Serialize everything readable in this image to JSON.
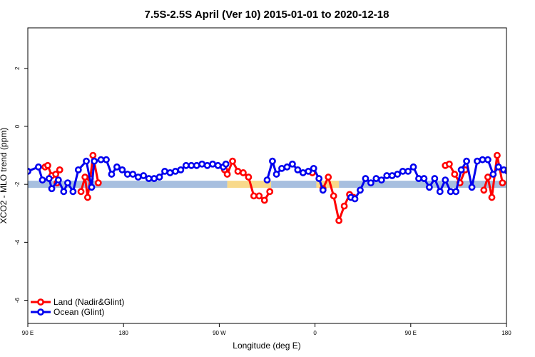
{
  "chart_data": {
    "type": "line",
    "title": "7.5S-2.5S April (Ver 10)   2015-01-01 to 2020-12-18",
    "xlabel": "Longitude (deg E)",
    "ylabel": "XCO2 - MLO trend (ppm)",
    "xlim": [
      90,
      450
    ],
    "ylim": [
      -6.8,
      3.4
    ],
    "x_ticks": [
      {
        "value": 90,
        "label": "90 E"
      },
      {
        "value": 162,
        "label": "180"
      },
      {
        "value": 234,
        "label": "90 W"
      },
      {
        "value": 306,
        "label": "0"
      },
      {
        "value": 378,
        "label": "90 E"
      },
      {
        "value": 450,
        "label": "180"
      }
    ],
    "y_ticks": [
      {
        "value": 2,
        "label": "2"
      },
      {
        "value": 0,
        "label": "0"
      },
      {
        "value": -2,
        "label": "-2"
      },
      {
        "value": -4,
        "label": "-4"
      },
      {
        "value": -6,
        "label": "-6"
      }
    ],
    "grid": false,
    "legend_position": "bottom-left",
    "reference_band": {
      "y": -2.0,
      "segments": [
        {
          "x": [
            90,
            240
          ],
          "color": "#a7bfdf"
        },
        {
          "x": [
            240,
            273
          ],
          "color": "#f8d98a"
        },
        {
          "x": [
            273,
            307
          ],
          "color": "#a7bfdf"
        },
        {
          "x": [
            307,
            324
          ],
          "color": "#f8d98a"
        },
        {
          "x": [
            324,
            450
          ],
          "color": "#a7bfdf"
        }
      ]
    },
    "series": [
      {
        "name": "Land (Nadir&Glint)",
        "color": "#ff0000",
        "segments": [
          [
            [
              103,
              -1.4
            ],
            [
              105,
              -1.35
            ],
            [
              108,
              -1.7
            ],
            [
              111,
              -1.65
            ],
            [
              112,
              -1.95
            ]
          ],
          [
            [
              114,
              -1.5
            ]
          ],
          [
            [
              130,
              -2.25
            ],
            [
              133,
              -1.75
            ],
            [
              135,
              -2.45
            ],
            [
              137,
              -1.8
            ],
            [
              139,
              -1.0
            ],
            [
              143,
              -1.95
            ]
          ],
          [
            [
              238,
              -1.5
            ],
            [
              240,
              -1.65
            ],
            [
              244,
              -1.2
            ],
            [
              248,
              -1.55
            ],
            [
              252,
              -1.6
            ],
            [
              256,
              -1.75
            ],
            [
              260,
              -2.4
            ],
            [
              264,
              -2.4
            ],
            [
              268,
              -2.55
            ],
            [
              272,
              -2.25
            ]
          ],
          [
            [
              304,
              -1.6
            ]
          ],
          [
            [
              312,
              -2.15
            ],
            [
              316,
              -1.75
            ],
            [
              320,
              -2.4
            ],
            [
              324,
              -3.25
            ],
            [
              328,
              -2.75
            ],
            [
              332,
              -2.35
            ],
            [
              335,
              -2.45
            ]
          ],
          [
            [
              404,
              -1.35
            ],
            [
              407,
              -1.3
            ],
            [
              411,
              -1.65
            ],
            [
              415,
              -1.95
            ],
            [
              419,
              -1.5
            ]
          ],
          [
            [
              433,
              -2.2
            ],
            [
              436,
              -1.75
            ],
            [
              439,
              -2.45
            ],
            [
              443,
              -1.0
            ],
            [
              447,
              -1.95
            ]
          ]
        ]
      },
      {
        "name": "Ocean (Glint)",
        "color": "#0000ee",
        "segments": [
          [
            [
              90,
              -1.55
            ],
            [
              98,
              -1.4
            ],
            [
              101,
              -1.85
            ],
            [
              106,
              -1.8
            ],
            [
              108,
              -2.15
            ],
            [
              113,
              -1.85
            ],
            [
              117,
              -2.25
            ],
            [
              120,
              -1.95
            ],
            [
              124,
              -2.25
            ],
            [
              128,
              -1.5
            ],
            [
              134,
              -1.2
            ],
            [
              138,
              -2.1
            ],
            [
              140,
              -1.2
            ],
            [
              145,
              -1.15
            ],
            [
              149,
              -1.15
            ],
            [
              153,
              -1.65
            ],
            [
              157,
              -1.4
            ],
            [
              161,
              -1.5
            ],
            [
              165,
              -1.65
            ],
            [
              169,
              -1.65
            ],
            [
              173,
              -1.75
            ],
            [
              177,
              -1.7
            ],
            [
              181,
              -1.8
            ],
            [
              185,
              -1.8
            ],
            [
              189,
              -1.75
            ],
            [
              193,
              -1.55
            ],
            [
              197,
              -1.6
            ],
            [
              201,
              -1.55
            ],
            [
              205,
              -1.5
            ],
            [
              209,
              -1.35
            ],
            [
              213,
              -1.35
            ],
            [
              217,
              -1.35
            ],
            [
              221,
              -1.3
            ],
            [
              225,
              -1.35
            ],
            [
              229,
              -1.3
            ],
            [
              233,
              -1.35
            ],
            [
              237,
              -1.4
            ],
            [
              239,
              -1.3
            ]
          ],
          [
            [
              270,
              -1.85
            ],
            [
              274,
              -1.2
            ],
            [
              277,
              -1.65
            ],
            [
              281,
              -1.45
            ],
            [
              285,
              -1.4
            ],
            [
              289,
              -1.3
            ],
            [
              293,
              -1.5
            ],
            [
              297,
              -1.6
            ],
            [
              301,
              -1.55
            ],
            [
              305,
              -1.45
            ],
            [
              309,
              -1.8
            ],
            [
              312,
              -2.2
            ]
          ],
          [
            [
              333,
              -2.45
            ],
            [
              336,
              -2.5
            ],
            [
              340,
              -2.2
            ],
            [
              344,
              -1.8
            ],
            [
              348,
              -1.95
            ],
            [
              352,
              -1.8
            ],
            [
              356,
              -1.85
            ],
            [
              360,
              -1.7
            ],
            [
              364,
              -1.7
            ],
            [
              368,
              -1.65
            ],
            [
              372,
              -1.55
            ],
            [
              376,
              -1.55
            ],
            [
              380,
              -1.4
            ],
            [
              384,
              -1.8
            ],
            [
              388,
              -1.8
            ],
            [
              392,
              -2.1
            ],
            [
              396,
              -1.8
            ],
            [
              400,
              -2.25
            ],
            [
              404,
              -1.85
            ],
            [
              408,
              -2.25
            ],
            [
              412,
              -2.25
            ],
            [
              416,
              -1.5
            ],
            [
              420,
              -1.2
            ],
            [
              424,
              -2.1
            ],
            [
              428,
              -1.2
            ],
            [
              432,
              -1.15
            ],
            [
              436,
              -1.15
            ],
            [
              440,
              -1.65
            ],
            [
              444,
              -1.4
            ],
            [
              448,
              -1.5
            ],
            [
              451,
              -1.55
            ]
          ]
        ]
      }
    ]
  }
}
